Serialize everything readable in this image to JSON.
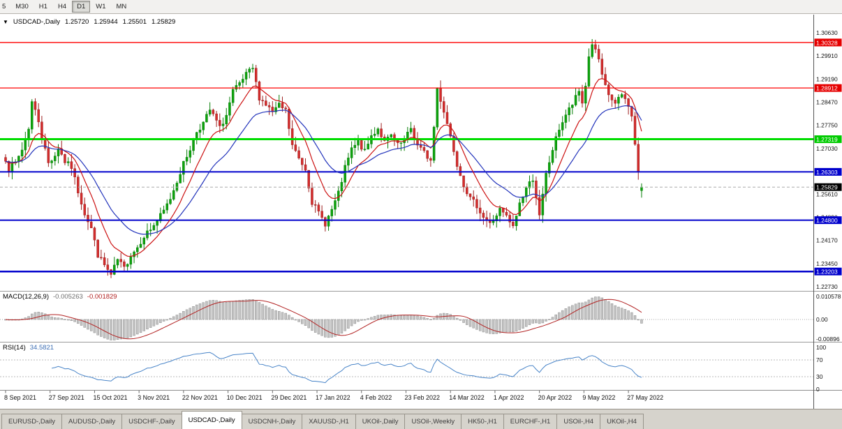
{
  "toolbar": {
    "timeframes": [
      {
        "label": "5",
        "active": false
      },
      {
        "label": "M30",
        "active": false
      },
      {
        "label": "H1",
        "active": false
      },
      {
        "label": "H4",
        "active": false
      },
      {
        "label": "D1",
        "active": true
      },
      {
        "label": "W1",
        "active": false
      },
      {
        "label": "MN",
        "active": false
      }
    ]
  },
  "chart": {
    "collapse_icon": "▼",
    "symbol_label": "USDCAD-,Daily",
    "open": "1.25720",
    "high": "1.25944",
    "low": "1.25501",
    "close": "1.25829"
  },
  "indicators": {
    "macd": {
      "label": "MACD(12,26,9)",
      "value_main": "-0.005263",
      "value_signal": "-0.001829",
      "axis_labels": [
        "0.010578",
        "0.00",
        "-0.00896"
      ],
      "fast": 12,
      "slow": 26,
      "signal": 9
    },
    "rsi": {
      "label": "RSI(14)",
      "value": "34.5821",
      "axis_labels": [
        "100",
        "70",
        "30",
        "0"
      ],
      "period": 14,
      "levels": [
        70,
        30
      ]
    }
  },
  "price_axis": {
    "ticks": [
      "1.30630",
      "1.29910",
      "1.29190",
      "1.28470",
      "1.27750",
      "1.27030",
      "1.25610",
      "1.24890",
      "1.24170",
      "1.23450",
      "1.22730"
    ],
    "badges": [
      {
        "value": "1.30328",
        "color": "#e60000",
        "type": "resistance-line"
      },
      {
        "value": "1.28912",
        "color": "#e60000",
        "type": "resistance-line"
      },
      {
        "value": "1.27319",
        "color": "#00cc00",
        "type": "support-line"
      },
      {
        "value": "1.26303",
        "color": "#0000cc",
        "type": "support-line"
      },
      {
        "value": "1.25829",
        "color": "#000000",
        "type": "current-price"
      },
      {
        "value": "1.24800",
        "color": "#0000cc",
        "type": "support-line"
      },
      {
        "value": "1.23203",
        "color": "#0000cc",
        "type": "support-line"
      }
    ]
  },
  "time_axis": {
    "labels": [
      "8 Sep 2021",
      "27 Sep 2021",
      "15 Oct 2021",
      "3 Nov 2021",
      "22 Nov 2021",
      "10 Dec 2021",
      "29 Dec 2021",
      "17 Jan 2022",
      "4 Feb 2022",
      "23 Feb 2022",
      "14 Mar 2022",
      "1 Apr 2022",
      "20 Apr 2022",
      "9 May 2022",
      "27 May 2022"
    ],
    "bars_per_label": 13.5
  },
  "tabs": [
    {
      "label": "EURUSD-,Daily",
      "active": false
    },
    {
      "label": "AUDUSD-,Daily",
      "active": false
    },
    {
      "label": "USDCHF-,Daily",
      "active": false
    },
    {
      "label": "USDCAD-,Daily",
      "active": true
    },
    {
      "label": "USDCNH-,Daily",
      "active": false
    },
    {
      "label": "XAUUSD-,H1",
      "active": false
    },
    {
      "label": "UKOil-,Daily",
      "active": false
    },
    {
      "label": "USOil-,Weekly",
      "active": false
    },
    {
      "label": "HK50-,H1",
      "active": false
    },
    {
      "label": "EURCHF-,H1",
      "active": false
    },
    {
      "label": "USOil-,H4",
      "active": false
    },
    {
      "label": "UKOil-,H4",
      "active": false
    }
  ],
  "chart_data": {
    "type": "candlestick",
    "symbol": "USDCAD-",
    "timeframe": "Daily",
    "visible_price_range": [
      1.2273,
      1.3063
    ],
    "bar_count": 194,
    "current_bar": {
      "open": 1.2572,
      "high": 1.25944,
      "low": 1.25501,
      "close": 1.25829
    },
    "path_anchors": [
      [
        0,
        1.2672
      ],
      [
        1,
        1.264
      ],
      [
        3,
        1.2658
      ],
      [
        5,
        1.27
      ],
      [
        7,
        1.2768
      ],
      [
        8,
        1.2848
      ],
      [
        9,
        1.282
      ],
      [
        10,
        1.279
      ],
      [
        11,
        1.274
      ],
      [
        13,
        1.2658
      ],
      [
        15,
        1.2682
      ],
      [
        16,
        1.2706
      ],
      [
        18,
        1.2662
      ],
      [
        20,
        1.2645
      ],
      [
        22,
        1.257
      ],
      [
        24,
        1.2502
      ],
      [
        26,
        1.2455
      ],
      [
        28,
        1.2372
      ],
      [
        30,
        1.234
      ],
      [
        32,
        1.2308
      ],
      [
        33,
        1.2332
      ],
      [
        34,
        1.2356
      ],
      [
        36,
        1.233
      ],
      [
        38,
        1.2372
      ],
      [
        40,
        1.2396
      ],
      [
        42,
        1.2432
      ],
      [
        44,
        1.2452
      ],
      [
        46,
        1.2478
      ],
      [
        48,
        1.2508
      ],
      [
        50,
        1.2548
      ],
      [
        52,
        1.2602
      ],
      [
        54,
        1.2656
      ],
      [
        56,
        1.2702
      ],
      [
        58,
        1.2756
      ],
      [
        60,
        1.2782
      ],
      [
        62,
        1.2822
      ],
      [
        64,
        1.2788
      ],
      [
        65,
        1.2766
      ],
      [
        67,
        1.2806
      ],
      [
        69,
        1.288
      ],
      [
        71,
        1.2902
      ],
      [
        73,
        1.2932
      ],
      [
        75,
        1.2952
      ],
      [
        76,
        1.2905
      ],
      [
        77,
        1.2862
      ],
      [
        79,
        1.284
      ],
      [
        81,
        1.2816
      ],
      [
        83,
        1.2836
      ],
      [
        85,
        1.282
      ],
      [
        87,
        1.2712
      ],
      [
        89,
        1.2672
      ],
      [
        91,
        1.264
      ],
      [
        93,
        1.2537
      ],
      [
        95,
        1.2502
      ],
      [
        97,
        1.247
      ],
      [
        99,
        1.2512
      ],
      [
        101,
        1.2562
      ],
      [
        103,
        1.2642
      ],
      [
        105,
        1.27
      ],
      [
        107,
        1.2722
      ],
      [
        109,
        1.2692
      ],
      [
        111,
        1.2742
      ],
      [
        113,
        1.2766
      ],
      [
        115,
        1.2722
      ],
      [
        117,
        1.2742
      ],
      [
        119,
        1.2712
      ],
      [
        121,
        1.2726
      ],
      [
        123,
        1.2766
      ],
      [
        125,
        1.2712
      ],
      [
        127,
        1.269
      ],
      [
        129,
        1.2665
      ],
      [
        130,
        1.277
      ],
      [
        131,
        1.289
      ],
      [
        133,
        1.282
      ],
      [
        135,
        1.2742
      ],
      [
        137,
        1.2656
      ],
      [
        139,
        1.2592
      ],
      [
        141,
        1.2546
      ],
      [
        143,
        1.2526
      ],
      [
        145,
        1.249
      ],
      [
        147,
        1.2468
      ],
      [
        148,
        1.248
      ],
      [
        150,
        1.2512
      ],
      [
        152,
        1.249
      ],
      [
        154,
        1.2457
      ],
      [
        156,
        1.2533
      ],
      [
        158,
        1.258
      ],
      [
        160,
        1.261
      ],
      [
        161,
        1.2555
      ],
      [
        162,
        1.249
      ],
      [
        164,
        1.2621
      ],
      [
        166,
        1.27
      ],
      [
        168,
        1.2765
      ],
      [
        170,
        1.2808
      ],
      [
        172,
        1.284
      ],
      [
        174,
        1.288
      ],
      [
        175,
        1.2845
      ],
      [
        176,
        1.29
      ],
      [
        177,
        1.2988
      ],
      [
        178,
        1.303
      ],
      [
        179,
        1.3005
      ],
      [
        180,
        1.298
      ],
      [
        181,
        1.2925
      ],
      [
        182,
        1.2895
      ],
      [
        183,
        1.287
      ],
      [
        184,
        1.2855
      ],
      [
        185,
        1.284
      ],
      [
        186,
        1.2855
      ],
      [
        187,
        1.287
      ],
      [
        188,
        1.2855
      ],
      [
        189,
        1.284
      ],
      [
        190,
        1.28
      ],
      [
        191,
        1.2718
      ],
      [
        192,
        1.2628
      ],
      [
        193,
        1.25829
      ]
    ],
    "levels": [
      {
        "price": 1.30328,
        "color": "#ff0000",
        "width": 1.3,
        "style": "solid"
      },
      {
        "price": 1.28912,
        "color": "#ff0000",
        "width": 1.3,
        "style": "solid"
      },
      {
        "price": 1.27319,
        "color": "#00dd00",
        "width": 3,
        "style": "solid"
      },
      {
        "price": 1.26303,
        "color": "#0000cc",
        "width": 2,
        "style": "solid"
      },
      {
        "price": 1.248,
        "color": "#0000cc",
        "width": 2,
        "style": "solid"
      },
      {
        "price": 1.23203,
        "color": "#0000cc",
        "width": 2.5,
        "style": "solid"
      },
      {
        "price": 1.25829,
        "color": "#aaaaaa",
        "width": 1,
        "style": "dashed"
      }
    ],
    "colors": {
      "bull": "#0da30d",
      "bull_border": "#067d06",
      "bear": "#d42c2c",
      "bear_border": "#9c1f1f",
      "ma_fast": "#cc1111",
      "ma_slow": "#2233bb",
      "macd_hist": "#c4c4c4",
      "macd_hist_border": "#8f8f8f",
      "macd_signal": "#b22222",
      "rsi_line": "#4884c8"
    },
    "ma_fast_period": 10,
    "ma_slow_period": 24,
    "seed": 7
  }
}
